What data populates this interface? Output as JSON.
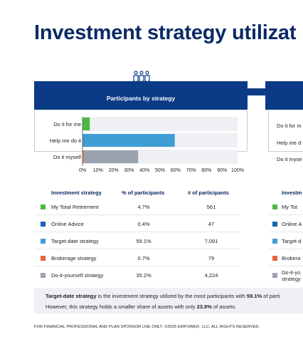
{
  "title": "Investment strategy utilizat",
  "banner_label": "Participants by strategy",
  "chart_data": {
    "type": "bar",
    "orientation": "horizontal",
    "stacked": true,
    "categories": [
      "Do it for me",
      "Help me do it",
      "Do it myself"
    ],
    "series": [
      {
        "values": [
          4.7,
          0,
          0
        ],
        "color": "#4bb93f"
      },
      {
        "values": [
          0,
          0.4,
          0
        ],
        "color": "#1f5fb4"
      },
      {
        "values": [
          0,
          59.1,
          0
        ],
        "color": "#3e9ed4"
      },
      {
        "values": [
          0,
          0,
          0.7
        ],
        "color": "#e8663a"
      },
      {
        "values": [
          0,
          0,
          35.2
        ],
        "color": "#9aa3ad"
      }
    ],
    "x_ticks": [
      "0%",
      "10%",
      "20%",
      "30%",
      "40%",
      "50%",
      "60%",
      "70%",
      "80%",
      "90%",
      "100%"
    ],
    "xlim": [
      0,
      100
    ]
  },
  "right_categories": [
    "Do it for m",
    "Help me d",
    "Do it myse"
  ],
  "table": {
    "headers": [
      "Investment strategy",
      "% of participants",
      "# of participants"
    ],
    "rows": [
      {
        "name": "My Total Retirement",
        "pct": "4.7%",
        "count": "561",
        "color": "#4bb93f"
      },
      {
        "name": "Online Advice",
        "pct": "0.4%",
        "count": "47",
        "color": "#1f5fb4"
      },
      {
        "name": "Target-date strategy",
        "pct": "59.1%",
        "count": "7,091",
        "color": "#3e9ed4"
      },
      {
        "name": "Brokerage strategy",
        "pct": "0.7%",
        "count": "79",
        "color": "#e8663a"
      },
      {
        "name": "Do-it-yourself strategy",
        "pct": "35.2%",
        "count": "4,224",
        "color": "#9aa3ad"
      }
    ],
    "right_header": "Investm",
    "right_rows": [
      "My Tot",
      "Online A",
      "Target-d",
      "Brokera",
      "Do-it-yo",
      "strategy"
    ]
  },
  "note": {
    "line1_bold": "Target-date strategy",
    "line1_mid": " is the investment strategy utilized by the most participants with ",
    "line1_bold2": "59.1%",
    "line1_end": " of parti",
    "line2_start": "However, this strategy holds a smaller share of assets with only ",
    "line2_bold": "23.8%",
    "line2_end": " of assets."
  },
  "footer": "FOR FINANCIAL PROFESSIONAL AND PLAN SPONSOR USE ONLY. ©2025 EMPOWER, LLC. ALL RIGHTS RESERVED."
}
